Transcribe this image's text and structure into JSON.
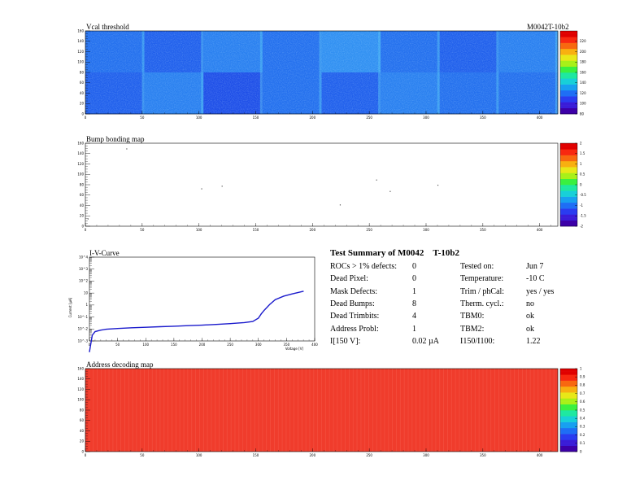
{
  "module_id": "M0042T-10b2",
  "panels": {
    "vcal": {
      "title": "Vcal threshold"
    },
    "bump": {
      "title": "Bump bonding map"
    },
    "iv": {
      "title": "I-V-Curve"
    },
    "addr": {
      "title": "Address decoding map"
    }
  },
  "summary": {
    "title_prefix": "Test Summary of M0042",
    "title_suffix": "T-10b2",
    "left": [
      {
        "label": "ROCs > 1% defects:",
        "value": "0"
      },
      {
        "label": "Dead Pixel:",
        "value": "0"
      },
      {
        "label": "Mask Defects:",
        "value": "1"
      },
      {
        "label": "Dead Bumps:",
        "value": "8"
      },
      {
        "label": "Dead Trimbits:",
        "value": "4"
      },
      {
        "label": "Address Probl:",
        "value": "1"
      },
      {
        "label": "I[150 V]:",
        "value": "0.02 µA"
      }
    ],
    "right": [
      {
        "label": "Tested on:",
        "value": "Jun 7"
      },
      {
        "label": "Temperature:",
        "value": "-10 C"
      },
      {
        "label": "Trim / phCal:",
        "value": "yes / yes"
      },
      {
        "label": "Therm. cycl.:",
        "value": "no"
      },
      {
        "label": "TBM0:",
        "value": "ok"
      },
      {
        "label": "TBM2:",
        "value": "ok"
      },
      {
        "label": "I150/I100:",
        "value": "1.22"
      }
    ]
  },
  "chart_data": [
    {
      "type": "heatmap",
      "title": "Vcal threshold",
      "x_range": [
        0,
        416
      ],
      "y_range": [
        0,
        160
      ],
      "x_ticks": [
        "0",
        "50",
        "100",
        "150",
        "200",
        "250",
        "300",
        "350",
        "400"
      ],
      "y_ticks": [
        "0",
        "20",
        "40",
        "60",
        "80",
        "100",
        "120",
        "140",
        "160"
      ],
      "z_range": [
        80,
        240
      ],
      "z_ticks": [
        "80",
        "100",
        "120",
        "140",
        "160",
        "180",
        "200",
        "220"
      ],
      "roc_mean_levels": [
        [
          0.46,
          0.4,
          0.52,
          0.44,
          0.55,
          0.47,
          0.43,
          0.5
        ],
        [
          0.41,
          0.5,
          0.38,
          0.48,
          0.42,
          0.53,
          0.46,
          0.44
        ]
      ]
    },
    {
      "type": "heatmap",
      "title": "Bump bonding map",
      "x_range": [
        0,
        416
      ],
      "y_range": [
        0,
        160
      ],
      "x_ticks": [
        "0",
        "50",
        "100",
        "150",
        "200",
        "250",
        "300",
        "350",
        "400"
      ],
      "y_ticks": [
        "0",
        "20",
        "40",
        "60",
        "80",
        "100",
        "120",
        "140",
        "160"
      ],
      "z_range": [
        -2,
        2
      ],
      "z_ticks": [
        "-2",
        "-1.5",
        "-1",
        "-0.5",
        "0",
        "0.5",
        "1",
        "1.5",
        "2"
      ],
      "dead_bumps": [
        [
          36,
          150
        ],
        [
          2,
          15
        ],
        [
          102,
          73
        ],
        [
          120,
          78
        ],
        [
          224,
          42
        ],
        [
          256,
          90
        ],
        [
          268,
          68
        ],
        [
          310,
          80
        ]
      ]
    },
    {
      "type": "line",
      "title": "I-V-Curve",
      "xlabel": "Voltage [V]",
      "ylabel": "Current [µA]",
      "x_range": [
        0,
        400
      ],
      "x_ticks": [
        "0",
        "50",
        "100",
        "150",
        "200",
        "250",
        "300",
        "350",
        "400"
      ],
      "y_log_range": [
        -3,
        4
      ],
      "y_ticks": [
        "10^-3",
        "10^-2",
        "10^-1",
        "1",
        "10",
        "10^2",
        "10^3",
        "10^4"
      ],
      "series": [
        {
          "color": "#1a1acc",
          "x": [
            0,
            5,
            10,
            20,
            30,
            50,
            75,
            100,
            125,
            150,
            175,
            200,
            225,
            250,
            275,
            290,
            300,
            305,
            310,
            320,
            330,
            345,
            360,
            370,
            380
          ],
          "y": [
            0.00012,
            0.003,
            0.006,
            0.008,
            0.0095,
            0.011,
            0.0125,
            0.014,
            0.0155,
            0.017,
            0.019,
            0.021,
            0.024,
            0.028,
            0.034,
            0.042,
            0.08,
            0.18,
            0.35,
            1.1,
            2.8,
            5.5,
            8.5,
            11,
            14
          ]
        }
      ]
    },
    {
      "type": "heatmap",
      "title": "Address decoding map",
      "x_range": [
        0,
        416
      ],
      "y_range": [
        0,
        160
      ],
      "x_ticks": [
        "0",
        "50",
        "100",
        "150",
        "200",
        "250",
        "300",
        "350",
        "400"
      ],
      "y_ticks": [
        "0",
        "20",
        "40",
        "60",
        "80",
        "100",
        "120",
        "140",
        "160"
      ],
      "z_range": [
        0,
        1
      ],
      "z_ticks": [
        "0",
        "0.1",
        "0.2",
        "0.3",
        "0.4",
        "0.5",
        "0.6",
        "0.7",
        "0.8",
        "0.9",
        "1"
      ],
      "fill_value": 0.95
    }
  ]
}
